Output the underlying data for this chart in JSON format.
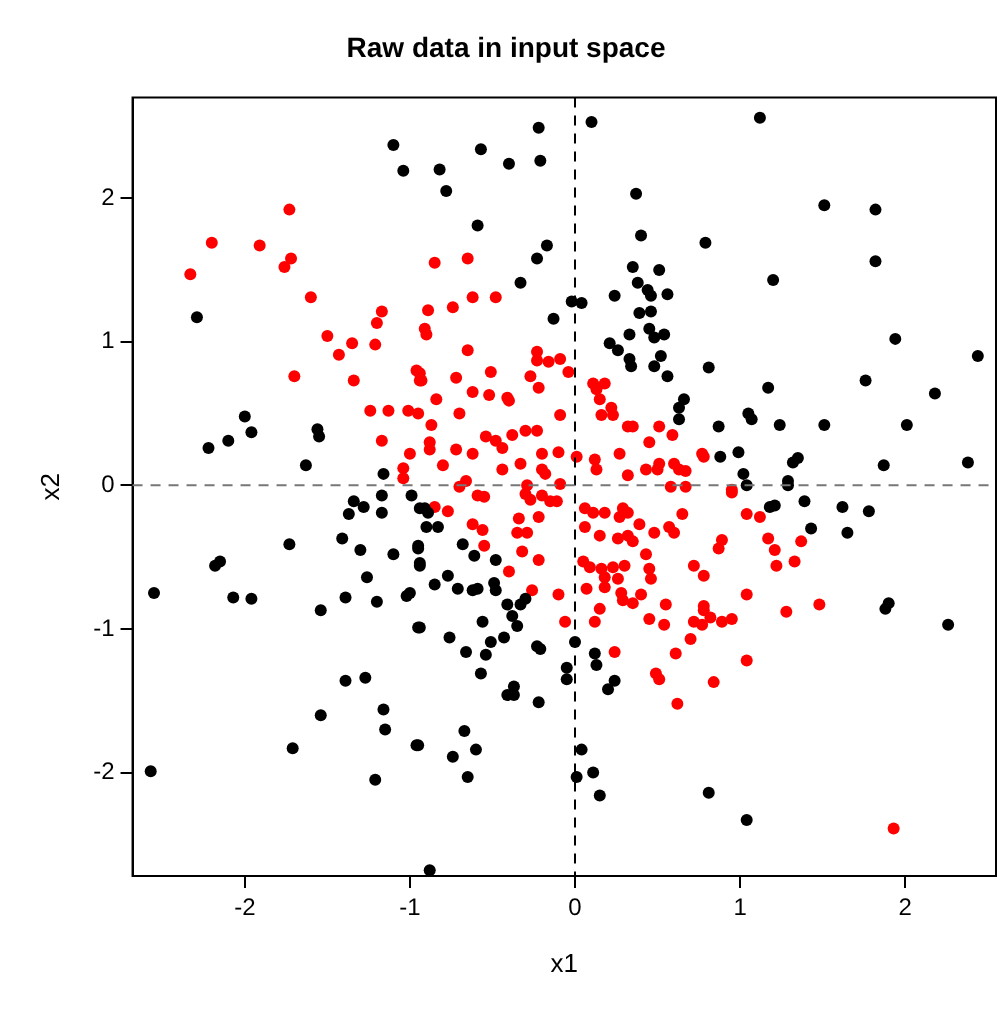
{
  "chart_data": {
    "type": "scatter",
    "title": "Raw data in input space",
    "xlabel": "x1",
    "ylabel": "x2",
    "xlim": [
      -2.68,
      2.55
    ],
    "ylim": [
      -2.72,
      2.7
    ],
    "xticks": [
      -2,
      -1,
      0,
      1,
      2
    ],
    "yticks": [
      -2,
      -1,
      0,
      1,
      2
    ],
    "grid": false,
    "legend": false,
    "marker": "circle",
    "ref_lines": [
      {
        "axis": "x",
        "value": 0,
        "line_style": "dashed",
        "color": "#000000"
      },
      {
        "axis": "y",
        "value": 0,
        "line_style": "dashed",
        "color": "#777777"
      }
    ],
    "series": [
      {
        "color": "#000000",
        "x": [
          -1.1,
          -1.04,
          -2.29,
          -2.0,
          -1.96,
          -2.1,
          -2.22,
          -1.56,
          -1.55,
          -1.63,
          -1.16,
          -0.22,
          0.1,
          -0.57,
          -0.4,
          -0.21,
          -0.82,
          -0.78,
          -0.59,
          0.37,
          0.4,
          0.79,
          -0.17,
          -0.23,
          -0.33,
          -0.02,
          0.04,
          -0.13,
          0.24,
          0.35,
          0.38,
          0.51,
          0.44,
          0.46,
          0.56,
          0.39,
          0.46,
          0.33,
          0.45,
          0.48,
          0.54,
          0.21,
          0.26,
          0.33,
          0.34,
          0.52,
          0.48,
          0.56,
          0.66,
          0.63,
          0.63,
          0.81,
          1.12,
          1.51,
          1.82,
          1.2,
          1.82,
          1.94,
          2.44,
          1.17,
          1.76,
          2.18,
          1.05,
          1.07,
          0.87,
          1.24,
          1.51,
          2.01,
          0.88,
          0.99,
          1.02,
          1.04,
          1.32,
          1.35,
          1.29,
          1.87,
          2.38,
          -1.17,
          -1.34,
          -1.28,
          -1.37,
          -1.17,
          -0.99,
          -0.94,
          -1.41,
          -1.73,
          -1.3,
          -1.1,
          -0.95,
          -0.94,
          -2.15,
          -2.18,
          -1.26,
          -2.55,
          -2.07,
          -1.96,
          -1.39,
          -1.2,
          -1.02,
          -1.0,
          -1.54,
          -0.95,
          -1.39,
          -1.27,
          -1.54,
          -1.16,
          -1.15,
          -0.96,
          -1.71,
          -2.57,
          -1.21,
          -0.91,
          -0.89,
          -0.9,
          -0.83,
          -0.95,
          -0.94,
          -0.68,
          -0.61,
          -0.48,
          -0.77,
          -0.85,
          -0.71,
          -0.62,
          -0.59,
          -0.49,
          -0.48,
          -0.41,
          -0.33,
          -0.3,
          -0.38,
          -0.35,
          -0.56,
          -0.94,
          -0.76,
          -0.43,
          -0.51,
          -0.66,
          -0.54,
          -0.23,
          -0.21,
          -0.57,
          0.0,
          -0.05,
          -0.05,
          0.12,
          0.13,
          0.24,
          0.2,
          -0.41,
          -0.37,
          -0.37,
          -0.22,
          -0.95,
          -0.67,
          -0.74,
          -0.6,
          -0.65,
          0.04,
          0.01,
          0.11,
          0.15,
          0.81,
          -0.88,
          1.29,
          1.18,
          1.21,
          1.39,
          1.62,
          1.78,
          1.43,
          1.65,
          1.88,
          1.9,
          2.26,
          1.04
        ],
        "values": [
          2.37,
          2.19,
          1.17,
          0.48,
          0.37,
          0.31,
          0.26,
          0.39,
          0.34,
          0.14,
          0.08,
          2.49,
          2.53,
          2.34,
          2.24,
          2.26,
          2.2,
          2.05,
          1.81,
          2.03,
          1.74,
          1.69,
          1.67,
          1.58,
          1.41,
          1.28,
          1.27,
          1.16,
          1.32,
          1.52,
          1.41,
          1.5,
          1.36,
          1.32,
          1.33,
          1.2,
          1.21,
          1.05,
          1.09,
          1.03,
          1.05,
          0.99,
          0.94,
          0.88,
          0.83,
          0.9,
          0.83,
          0.76,
          0.6,
          0.54,
          0.46,
          0.82,
          2.56,
          1.95,
          1.92,
          1.43,
          1.56,
          1.02,
          0.9,
          0.68,
          0.73,
          0.64,
          0.5,
          0.46,
          0.41,
          0.42,
          0.42,
          0.42,
          0.2,
          0.23,
          0.08,
          0.0,
          0.16,
          0.19,
          0.03,
          0.14,
          0.16,
          -0.07,
          -0.11,
          -0.15,
          -0.2,
          -0.19,
          -0.07,
          -0.16,
          -0.37,
          -0.41,
          -0.45,
          -0.48,
          -0.42,
          -0.54,
          -0.53,
          -0.56,
          -0.64,
          -0.75,
          -0.78,
          -0.79,
          -0.78,
          -0.81,
          -0.77,
          -0.75,
          -0.87,
          -0.99,
          -1.36,
          -1.34,
          -1.6,
          -1.56,
          -1.7,
          -1.81,
          -1.83,
          -1.99,
          -2.05,
          -0.16,
          -0.19,
          -0.29,
          -0.29,
          -0.44,
          -0.56,
          -0.41,
          -0.49,
          -0.52,
          -0.63,
          -0.69,
          -0.72,
          -0.73,
          -0.72,
          -0.68,
          -0.73,
          -0.83,
          -0.83,
          -0.79,
          -0.91,
          -0.98,
          -0.95,
          -0.99,
          -1.06,
          -1.06,
          -1.09,
          -1.16,
          -1.18,
          -1.12,
          -1.14,
          -1.31,
          -1.09,
          -1.27,
          -1.35,
          -1.17,
          -1.25,
          -1.36,
          -1.42,
          -1.46,
          -1.4,
          -1.46,
          -1.51,
          -1.81,
          -1.71,
          -1.89,
          -1.84,
          -2.03,
          -1.84,
          -2.03,
          -2.0,
          -2.16,
          -2.14,
          -2.68,
          0.0,
          -0.15,
          -0.14,
          -0.11,
          -0.15,
          -0.18,
          -0.3,
          -0.33,
          -0.86,
          -0.82,
          -0.97,
          -2.33
        ]
      },
      {
        "color": "#ff0000",
        "x": [
          -1.73,
          -2.2,
          -1.91,
          -2.33,
          -1.72,
          -1.76,
          -1.6,
          -1.17,
          -1.2,
          -1.5,
          -1.35,
          -1.21,
          -1.43,
          -1.7,
          -1.34,
          -1.24,
          -1.13,
          -1.01,
          -1.17,
          -1.0,
          -1.04,
          -1.04,
          -0.96,
          -0.94,
          -0.85,
          -0.65,
          -0.62,
          -0.48,
          -0.89,
          -0.74,
          -0.91,
          -0.9,
          -0.65,
          -0.23,
          -0.16,
          -0.09,
          -0.23,
          -0.94,
          -0.93,
          -0.72,
          -0.51,
          -0.27,
          -0.62,
          -0.52,
          -0.41,
          -0.4,
          -0.22,
          -0.04,
          -0.95,
          -0.84,
          -0.7,
          -0.09,
          -0.87,
          -0.88,
          -0.88,
          -0.8,
          -0.72,
          -0.62,
          -0.54,
          -0.48,
          -0.44,
          -0.38,
          -0.3,
          -0.23,
          -0.44,
          -0.33,
          -0.2,
          -0.2,
          -0.1,
          -0.18,
          -0.09,
          0.01,
          0.12,
          0.13,
          0.13,
          0.11,
          0.18,
          0.15,
          0.22,
          0.23,
          0.16,
          0.27,
          0.32,
          0.35,
          0.45,
          0.51,
          0.59,
          0.51,
          0.6,
          0.63,
          0.67,
          0.77,
          0.32,
          0.43,
          0.5,
          -0.66,
          -0.29,
          0.78,
          0.95,
          -0.7,
          -0.85,
          -0.77,
          -0.59,
          -0.55,
          -0.3,
          -0.27,
          -0.2,
          -0.15,
          -0.11,
          -0.22,
          -0.62,
          -0.56,
          -0.34,
          -0.35,
          -0.29,
          -0.55,
          -0.32,
          -0.22,
          -0.4,
          -0.26,
          -0.1,
          -0.06,
          0.06,
          0.11,
          0.18,
          0.06,
          0.15,
          0.29,
          0.32,
          0.27,
          0.39,
          0.26,
          0.32,
          0.35,
          0.48,
          0.57,
          0.6,
          0.65,
          0.58,
          0.67,
          0.05,
          0.09,
          0.16,
          0.23,
          0.26,
          0.18,
          0.43,
          0.45,
          0.46,
          0.3,
          0.07,
          0.18,
          0.28,
          0.29,
          0.35,
          0.4,
          0.55,
          0.45,
          0.54,
          0.72,
          0.72,
          0.77,
          0.7,
          0.12,
          0.15,
          0.24,
          0.49,
          0.51,
          0.61,
          0.62,
          0.78,
          0.95,
          1.04,
          1.12,
          1.17,
          1.21,
          1.22,
          1.33,
          1.37,
          0.87,
          0.89,
          0.78,
          1.04,
          1.48,
          1.28,
          0.78,
          0.82,
          0.89,
          0.95,
          1.04,
          0.84,
          1.93
        ],
        "values": [
          1.92,
          1.69,
          1.67,
          1.47,
          1.58,
          1.52,
          1.31,
          1.21,
          1.13,
          1.04,
          0.99,
          0.98,
          0.91,
          0.76,
          0.73,
          0.52,
          0.52,
          0.52,
          0.31,
          0.22,
          0.12,
          0.05,
          0.8,
          0.73,
          1.55,
          1.58,
          1.31,
          1.31,
          1.22,
          1.24,
          1.09,
          1.05,
          0.94,
          0.93,
          0.86,
          0.88,
          0.87,
          0.78,
          0.73,
          0.75,
          0.79,
          0.76,
          0.65,
          0.63,
          0.61,
          0.59,
          0.68,
          0.79,
          0.5,
          0.6,
          0.5,
          0.49,
          0.42,
          0.3,
          0.25,
          0.14,
          0.25,
          0.22,
          0.34,
          0.31,
          0.26,
          0.35,
          0.38,
          0.38,
          0.11,
          0.15,
          0.22,
          0.11,
          0.23,
          0.08,
          0.01,
          0.2,
          0.18,
          0.11,
          0.67,
          0.71,
          0.71,
          0.6,
          0.54,
          0.49,
          0.49,
          0.22,
          0.41,
          0.41,
          0.3,
          0.41,
          0.35,
          0.15,
          0.15,
          0.11,
          0.1,
          0.22,
          0.07,
          0.11,
          0.11,
          0.03,
          0.0,
          0.2,
          -0.03,
          -0.01,
          -0.15,
          -0.18,
          -0.07,
          -0.08,
          -0.06,
          -0.1,
          -0.07,
          -0.11,
          -0.11,
          -0.22,
          -0.27,
          -0.31,
          -0.23,
          -0.33,
          -0.33,
          -0.42,
          -0.46,
          -0.52,
          -0.6,
          -0.73,
          -0.76,
          -0.95,
          -0.16,
          -0.19,
          -0.19,
          -0.29,
          -0.35,
          -0.16,
          -0.19,
          -0.22,
          -0.27,
          -0.37,
          -0.35,
          -0.39,
          -0.33,
          -0.29,
          -0.33,
          -0.2,
          -0.01,
          -0.01,
          -0.53,
          -0.57,
          -0.58,
          -0.57,
          -0.65,
          -0.64,
          -0.48,
          -0.58,
          -0.65,
          -0.56,
          -0.72,
          -0.71,
          -0.75,
          -0.8,
          -0.82,
          -0.76,
          -0.83,
          -0.93,
          -0.97,
          -0.56,
          -0.95,
          -0.97,
          -1.07,
          -0.95,
          -0.86,
          -1.16,
          -1.31,
          -1.35,
          -1.17,
          -1.52,
          -0.87,
          -0.05,
          -0.2,
          -0.22,
          -0.37,
          -0.45,
          -0.56,
          -0.53,
          -0.39,
          -0.44,
          -0.38,
          -0.63,
          -0.76,
          -0.83,
          -0.88,
          -0.84,
          -0.92,
          -0.95,
          -0.93,
          -1.22,
          -1.37,
          -2.39
        ]
      }
    ]
  }
}
